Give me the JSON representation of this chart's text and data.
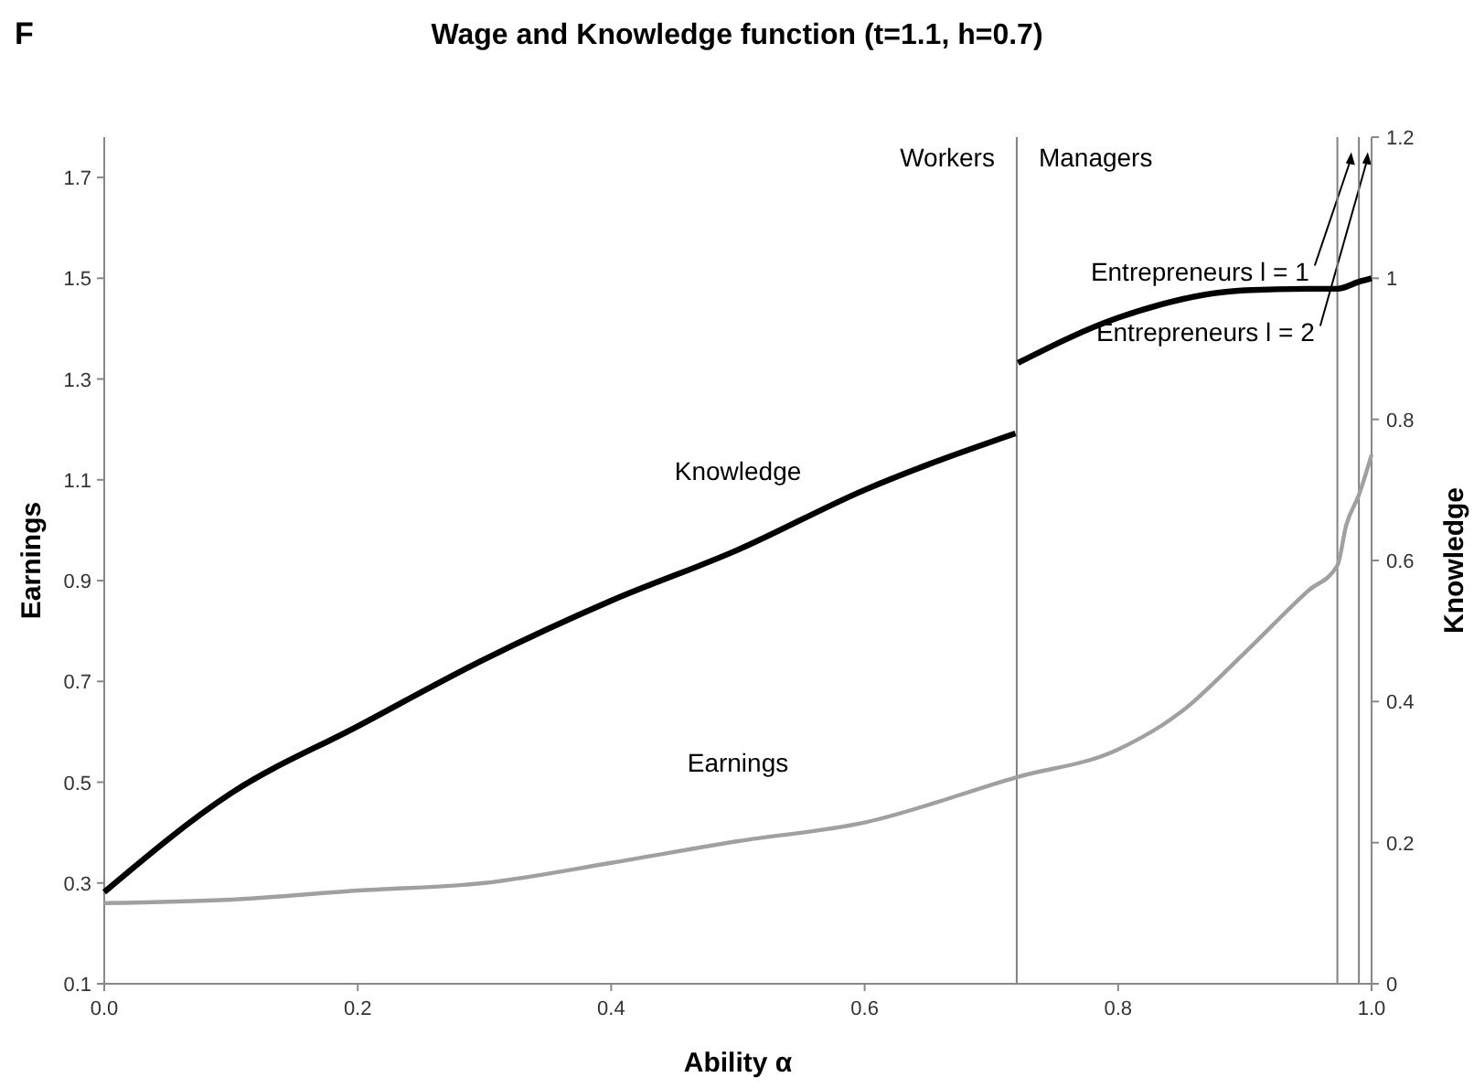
{
  "chart_data": {
    "type": "line",
    "title": "Wage and Knowledge function (t=1.1, h=0.7)",
    "xlabel": "Ability α",
    "ylabel": "Earnings",
    "y2label": "Knowledge",
    "xlim": [
      0,
      1
    ],
    "xticks": [
      {
        "value": 0,
        "label": "0.0"
      },
      0.2,
      0.4,
      0.6,
      0.8,
      {
        "value": 1,
        "label": "1.0"
      }
    ],
    "ylim": [
      0.1,
      1.78
    ],
    "yticks": [
      0.1,
      0.3,
      0.5,
      0.7,
      0.9,
      1.1,
      1.3,
      1.5,
      1.7
    ],
    "y2lim": [
      0,
      1.2
    ],
    "y2ticks": [
      0,
      0.2,
      0.4,
      0.6,
      0.8,
      1,
      1.2
    ],
    "grid": false,
    "series": [
      {
        "name": "Knowledge",
        "color": "#000000",
        "axis": "y2",
        "x": [
          0,
          0.1,
          0.2,
          0.3,
          0.4,
          0.5,
          0.6,
          0.719,
          0.72,
          0.721,
          0.8,
          0.9,
          0.95,
          0.973,
          0.99,
          1
        ],
        "values": [
          0.13,
          0.27,
          0.365,
          0.46,
          0.543,
          0.615,
          0.7,
          0.78,
          null,
          0.88,
          0.944,
          0.983,
          0.985,
          0.985,
          0.995,
          1
        ]
      },
      {
        "name": "Earnings",
        "color": "#a0a0a0",
        "x": [
          0,
          0.1,
          0.2,
          0.3,
          0.4,
          0.5,
          0.6,
          0.72,
          0.8,
          0.85,
          0.9,
          0.95,
          0.973,
          0.98,
          0.99,
          1
        ],
        "values": [
          0.26,
          0.267,
          0.285,
          0.3,
          0.34,
          0.383,
          0.42,
          0.51,
          0.565,
          0.64,
          0.757,
          0.88,
          0.93,
          1.01,
          1.07,
          1.15
        ]
      }
    ],
    "ref_lines": [
      {
        "axis": "x",
        "value": 0.72,
        "color": "#808080"
      },
      {
        "axis": "x",
        "value": 0.973,
        "color": "#808080"
      },
      {
        "axis": "x",
        "value": 0.99,
        "color": "#808080"
      }
    ],
    "annotations": [
      "F",
      "Workers",
      "Managers",
      {
        "text": "Entrepreneurs l = 1",
        "x": 0.984,
        "y": 1.75
      },
      {
        "text": "Entrepreneurs l = 2",
        "x": 0.997,
        "y": 1.75
      }
    ]
  }
}
